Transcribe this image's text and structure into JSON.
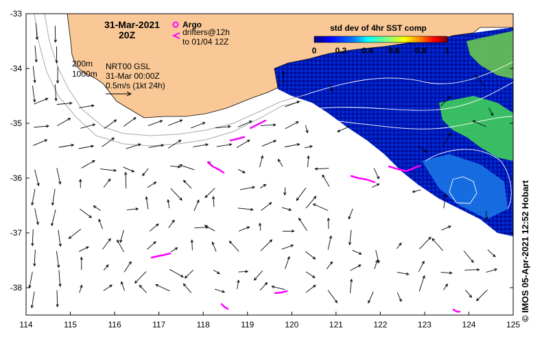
{
  "map": {
    "date_title": "31-Mar-2021",
    "time_title": "20Z",
    "legend": {
      "argo_label": "Argo",
      "drifters_label": "drifters@12h",
      "drifters_to_label": "to 01/04 12Z",
      "argo_color": "#ff00ff",
      "drifter_color": "#ff00ff"
    },
    "contours": {
      "label_200m": "200m",
      "label_1000m": "1000m"
    },
    "velocity": {
      "source_label": "NRT00 GSL",
      "time_label": "31-Mar 00:00Z",
      "scale_label": "0.5m/s (1kt 24h)"
    },
    "colorbar": {
      "title": "std dev of 4hr SST comp",
      "ticks": [
        "0",
        "0.2",
        "0.4",
        "0.6",
        "0.8",
        "1"
      ],
      "colors": [
        "#00007f",
        "#0000ff",
        "#007fff",
        "#00ffff",
        "#7fff7f",
        "#ffff00",
        "#ff7f00",
        "#ff0000",
        "#7f0000"
      ]
    },
    "land_color": "#f9c896",
    "x_axis": {
      "ticks": [
        "114",
        "115",
        "116",
        "117",
        "118",
        "119",
        "120",
        "121",
        "122",
        "123",
        "124",
        "125"
      ],
      "range": [
        114,
        125
      ]
    },
    "y_axis": {
      "ticks": [
        "-33",
        "-34",
        "-35",
        "-36",
        "-37",
        "-38"
      ],
      "range": [
        -38.5,
        -33
      ]
    },
    "credit": "© IMOS 05-Apr-2021 12:52 Hobart"
  }
}
